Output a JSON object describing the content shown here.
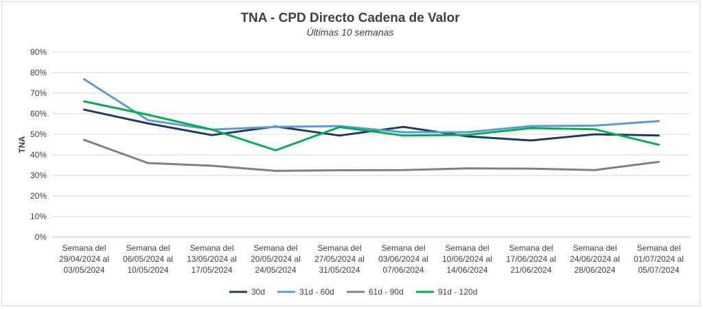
{
  "chart_data": {
    "type": "line",
    "title": "TNA - CPD Directo Cadena de Valor",
    "subtitle": "Últimas 10 semanas",
    "xlabel": "",
    "ylabel": "TNA",
    "ylim": [
      0,
      90
    ],
    "yticks": [
      "0%",
      "10%",
      "20%",
      "30%",
      "40%",
      "50%",
      "60%",
      "70%",
      "80%",
      "90%"
    ],
    "grid": true,
    "legend": "bottom",
    "categories": [
      [
        "Semana del",
        "29/04/2024 al",
        "03/05/2024"
      ],
      [
        "Semana del",
        "06/05/2024 al",
        "10/05/2024"
      ],
      [
        "Semana del",
        "13/05/2024 al",
        "17/05/2024"
      ],
      [
        "Semana del",
        "20/05/2024 al",
        "24/05/2024"
      ],
      [
        "Semana del",
        "27/05/2024 al",
        "31/05/2024"
      ],
      [
        "Semana del",
        "03/06/2024 al",
        "07/06/2024"
      ],
      [
        "Semana del",
        "10/06/2024 al",
        "14/06/2024"
      ],
      [
        "Semana del",
        "17/06/2024 al",
        "21/06/2024"
      ],
      [
        "Semana del",
        "24/06/2024 al",
        "28/06/2024"
      ],
      [
        "Semana del",
        "01/07/2024 al",
        "05/07/2024"
      ]
    ],
    "series": [
      {
        "name": "30d",
        "color": "#1f3864",
        "values": [
          62,
          55.3,
          49.6,
          53.8,
          49.4,
          53.6,
          49,
          47,
          50,
          49.4
        ]
      },
      {
        "name": "31d - 60d",
        "color": "#5b9bd5",
        "values": [
          76.8,
          56.9,
          52.3,
          53.6,
          54,
          51,
          51,
          54,
          54.2,
          56.4
        ]
      },
      {
        "name": "61d - 90d",
        "color": "#808080",
        "values": [
          47.3,
          36,
          34.7,
          32.2,
          32.5,
          32.6,
          33.4,
          33.3,
          32.6,
          36.6
        ]
      },
      {
        "name": "91d - 120d",
        "color": "#00b050",
        "values": [
          66,
          59.5,
          52.3,
          42.2,
          53.5,
          49.4,
          49.7,
          53,
          52.4,
          44.9
        ]
      }
    ]
  }
}
